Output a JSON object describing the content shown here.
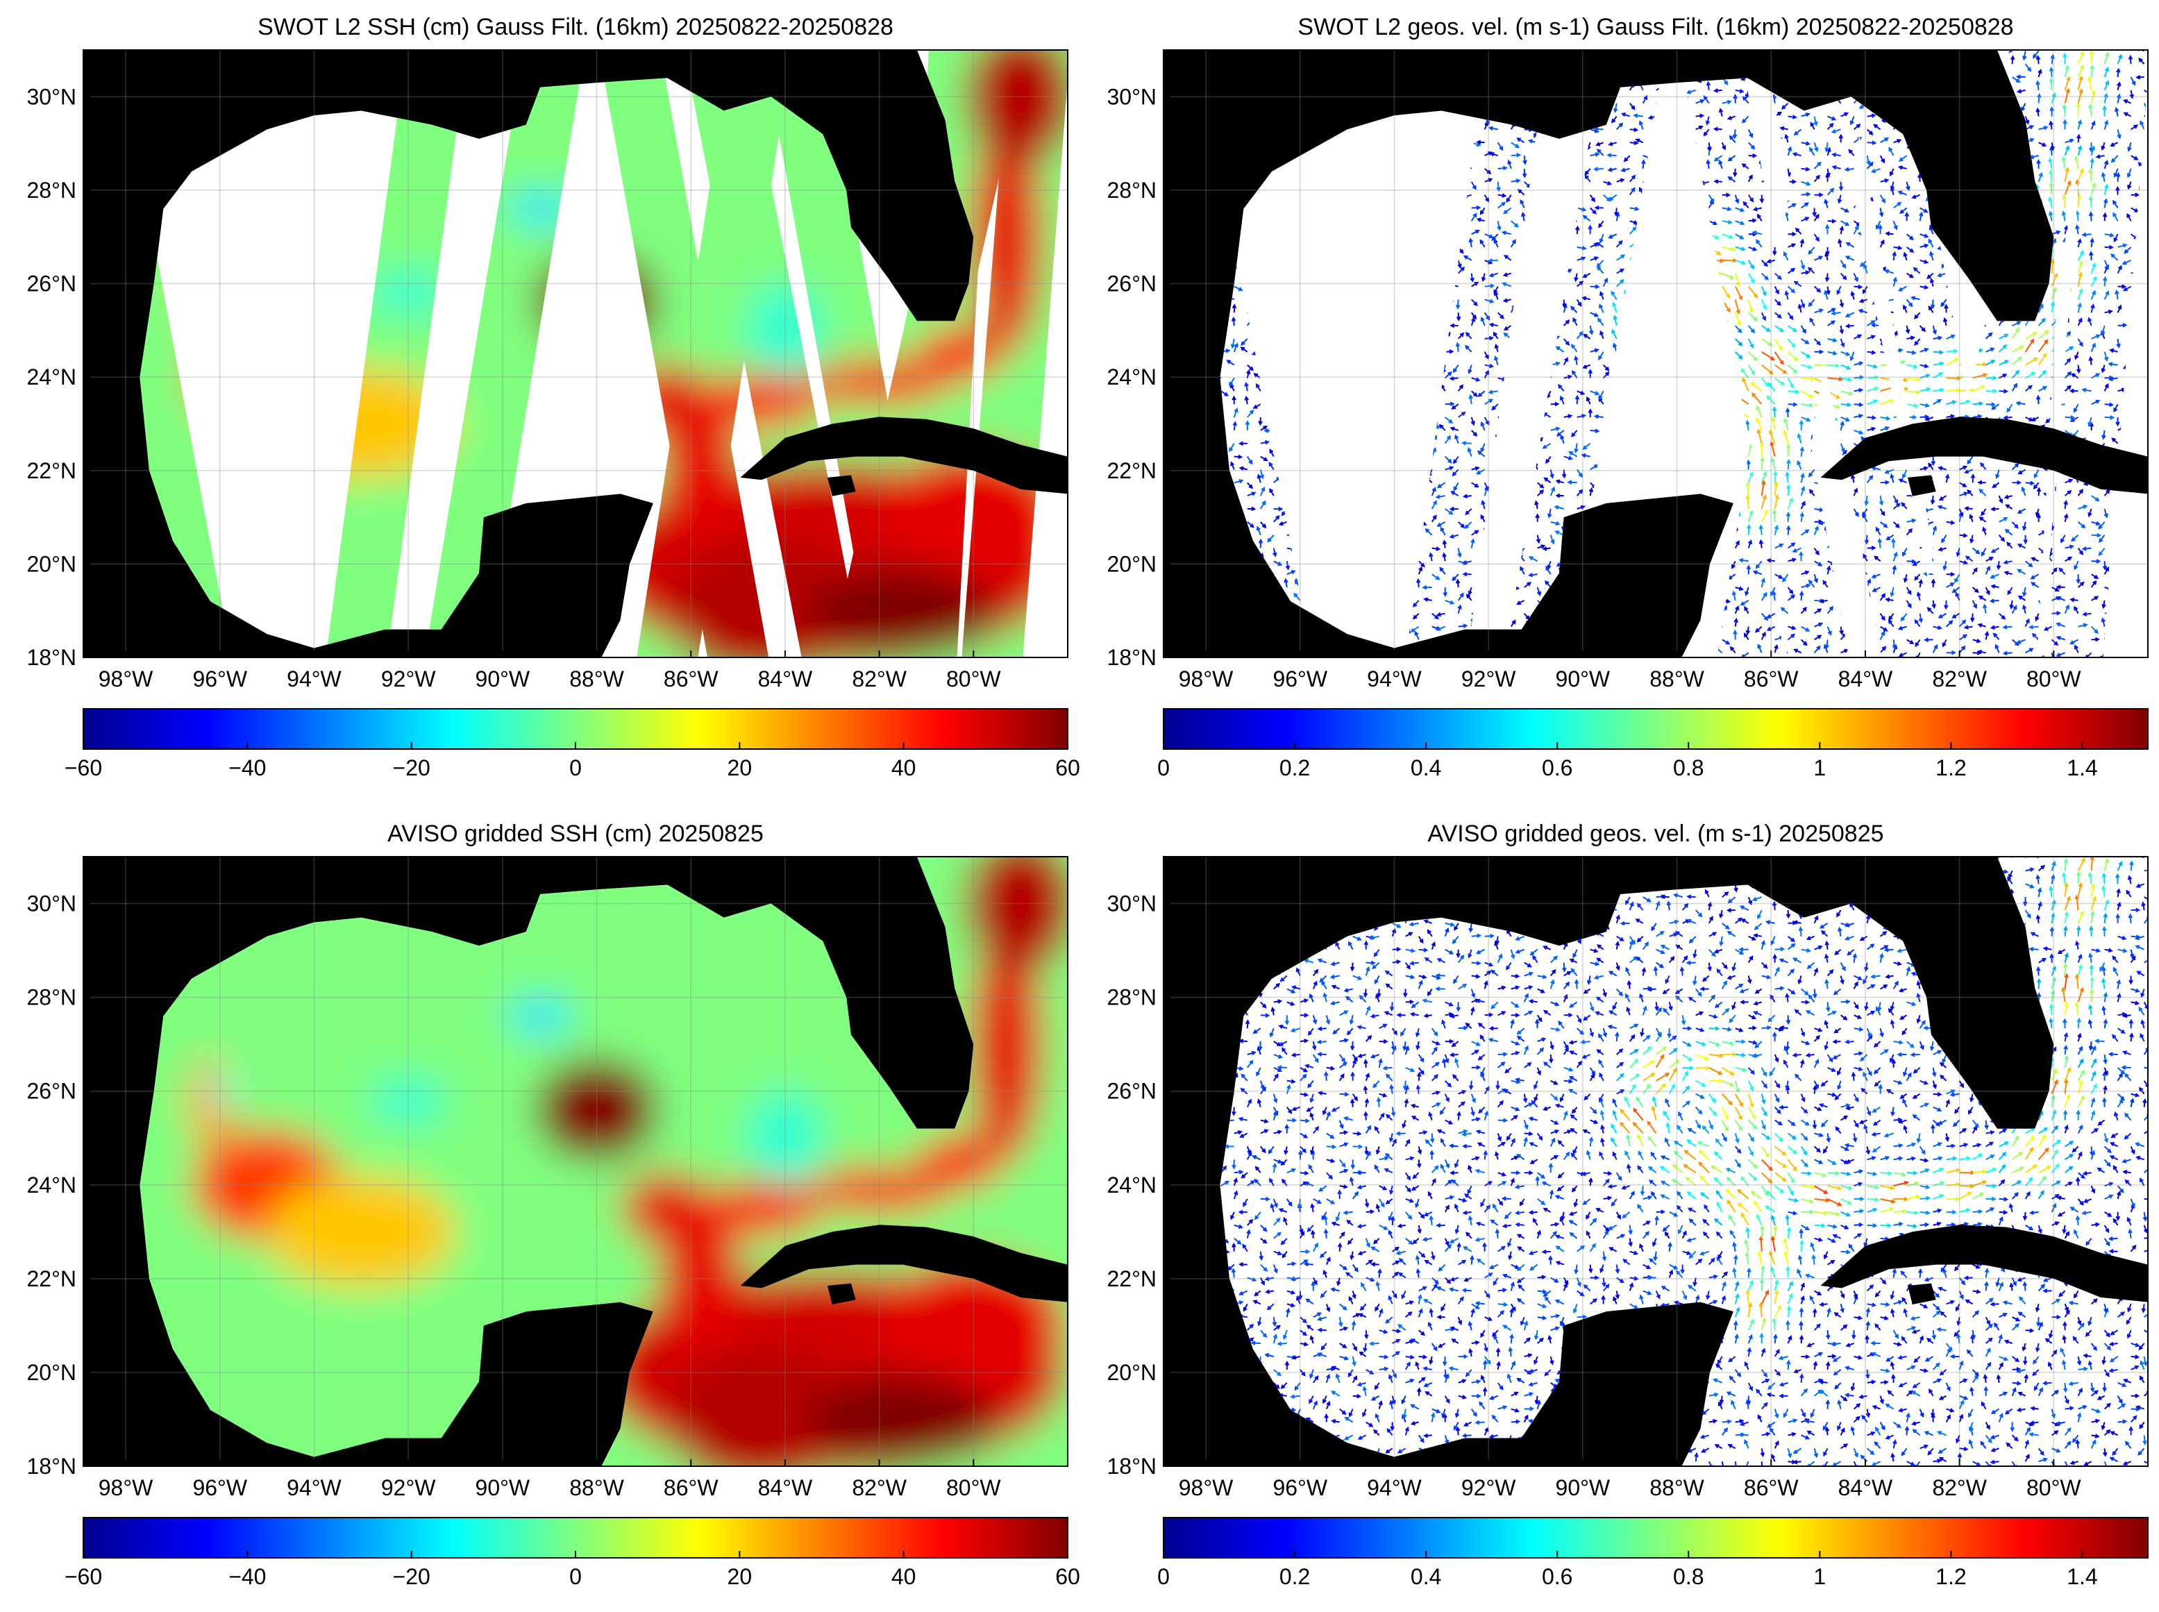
{
  "chart_data": [
    {
      "type": "heatmap",
      "swath": true,
      "title": "SWOT L2 SSH (cm) Gauss Filt. (16km) 20250822-20250828",
      "xlim": [
        -98.9,
        -78
      ],
      "ylim": [
        18,
        31
      ],
      "xticks": [
        {
          "value": -98,
          "label": "98°W"
        },
        {
          "value": -96,
          "label": "96°W"
        },
        {
          "value": -94,
          "label": "94°W"
        },
        {
          "value": -92,
          "label": "92°W"
        },
        {
          "value": -90,
          "label": "90°W"
        },
        {
          "value": -88,
          "label": "88°W"
        },
        {
          "value": -86,
          "label": "86°W"
        },
        {
          "value": -84,
          "label": "84°W"
        },
        {
          "value": -82,
          "label": "82°W"
        },
        {
          "value": -80,
          "label": "80°W"
        }
      ],
      "yticks": [
        {
          "value": 18,
          "label": "18°N"
        },
        {
          "value": 20,
          "label": "20°N"
        },
        {
          "value": 22,
          "label": "22°N"
        },
        {
          "value": 24,
          "label": "24°N"
        },
        {
          "value": 26,
          "label": "26°N"
        },
        {
          "value": 28,
          "label": "28°N"
        },
        {
          "value": 30,
          "label": "30°N"
        }
      ],
      "grid": true,
      "colorbar": {
        "lim": [
          -60,
          60
        ],
        "ticks": [
          {
            "value": -60,
            "label": "−60"
          },
          {
            "value": -40,
            "label": "−40"
          },
          {
            "value": -20,
            "label": "−20"
          },
          0,
          20,
          40,
          60
        ]
      }
    },
    {
      "type": "quiver",
      "swath": true,
      "title": "SWOT L2 geos. vel. (m s-1) Gauss Filt. (16km) 20250822-20250828",
      "xlim": [
        -98.9,
        -78
      ],
      "ylim": [
        18,
        31
      ],
      "xticks": [
        {
          "value": -98,
          "label": "98°W"
        },
        {
          "value": -96,
          "label": "96°W"
        },
        {
          "value": -94,
          "label": "94°W"
        },
        {
          "value": -92,
          "label": "92°W"
        },
        {
          "value": -90,
          "label": "90°W"
        },
        {
          "value": -88,
          "label": "88°W"
        },
        {
          "value": -86,
          "label": "86°W"
        },
        {
          "value": -84,
          "label": "84°W"
        },
        {
          "value": -82,
          "label": "82°W"
        },
        {
          "value": -80,
          "label": "80°W"
        }
      ],
      "yticks": [
        {
          "value": 18,
          "label": "18°N"
        },
        {
          "value": 20,
          "label": "20°N"
        },
        {
          "value": 22,
          "label": "22°N"
        },
        {
          "value": 24,
          "label": "24°N"
        },
        {
          "value": 26,
          "label": "26°N"
        },
        {
          "value": 28,
          "label": "28°N"
        },
        {
          "value": 30,
          "label": "30°N"
        }
      ],
      "grid": true,
      "colorbar": {
        "lim": [
          0,
          1.5
        ],
        "ticks": [
          0,
          0.2,
          0.4,
          0.6,
          0.8,
          1,
          1.2,
          1.4
        ]
      }
    },
    {
      "type": "heatmap",
      "swath": false,
      "title": "AVISO gridded SSH (cm) 20250825",
      "xlim": [
        -98.9,
        -78
      ],
      "ylim": [
        18,
        31
      ],
      "xticks": [
        {
          "value": -98,
          "label": "98°W"
        },
        {
          "value": -96,
          "label": "96°W"
        },
        {
          "value": -94,
          "label": "94°W"
        },
        {
          "value": -92,
          "label": "92°W"
        },
        {
          "value": -90,
          "label": "90°W"
        },
        {
          "value": -88,
          "label": "88°W"
        },
        {
          "value": -86,
          "label": "86°W"
        },
        {
          "value": -84,
          "label": "84°W"
        },
        {
          "value": -82,
          "label": "82°W"
        },
        {
          "value": -80,
          "label": "80°W"
        }
      ],
      "yticks": [
        {
          "value": 18,
          "label": "18°N"
        },
        {
          "value": 20,
          "label": "20°N"
        },
        {
          "value": 22,
          "label": "22°N"
        },
        {
          "value": 24,
          "label": "24°N"
        },
        {
          "value": 26,
          "label": "26°N"
        },
        {
          "value": 28,
          "label": "28°N"
        },
        {
          "value": 30,
          "label": "30°N"
        }
      ],
      "grid": true,
      "colorbar": {
        "lim": [
          -60,
          60
        ],
        "ticks": [
          {
            "value": -60,
            "label": "−60"
          },
          {
            "value": -40,
            "label": "−40"
          },
          {
            "value": -20,
            "label": "−20"
          },
          0,
          20,
          40,
          60
        ]
      }
    },
    {
      "type": "quiver",
      "swath": false,
      "title": "AVISO gridded geos. vel. (m s-1)  20250825",
      "xlim": [
        -98.9,
        -78
      ],
      "ylim": [
        18,
        31
      ],
      "xticks": [
        {
          "value": -98,
          "label": "98°W"
        },
        {
          "value": -96,
          "label": "96°W"
        },
        {
          "value": -94,
          "label": "94°W"
        },
        {
          "value": -92,
          "label": "92°W"
        },
        {
          "value": -90,
          "label": "90°W"
        },
        {
          "value": -88,
          "label": "88°W"
        },
        {
          "value": -86,
          "label": "86°W"
        },
        {
          "value": -84,
          "label": "84°W"
        },
        {
          "value": -82,
          "label": "82°W"
        },
        {
          "value": -80,
          "label": "80°W"
        }
      ],
      "yticks": [
        {
          "value": 18,
          "label": "18°N"
        },
        {
          "value": 20,
          "label": "20°N"
        },
        {
          "value": 22,
          "label": "22°N"
        },
        {
          "value": 24,
          "label": "24°N"
        },
        {
          "value": 26,
          "label": "26°N"
        },
        {
          "value": 28,
          "label": "28°N"
        },
        {
          "value": 30,
          "label": "30°N"
        }
      ],
      "grid": true,
      "colorbar": {
        "lim": [
          0,
          1.5
        ],
        "ticks": [
          0,
          0.2,
          0.4,
          0.6,
          0.8,
          1,
          1.2,
          1.4
        ]
      }
    }
  ]
}
